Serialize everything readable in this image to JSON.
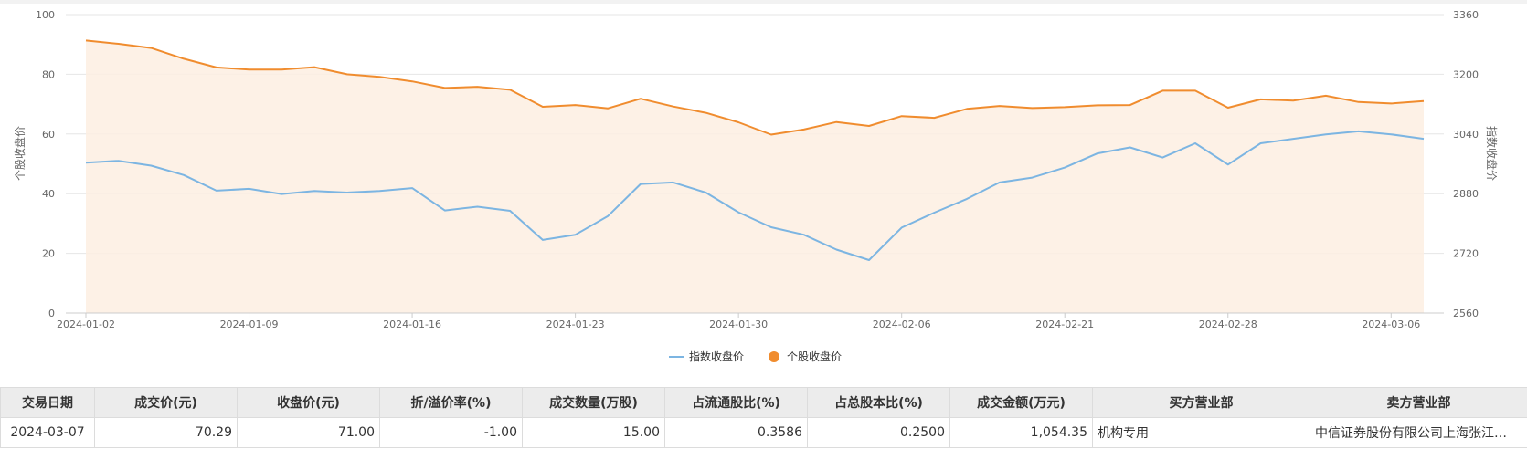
{
  "chart_data": {
    "type": "line",
    "left_axis": {
      "label": "个股收盘价",
      "ticks": [
        "0",
        "20",
        "40",
        "60",
        "80",
        "100"
      ],
      "range": [
        0,
        100
      ]
    },
    "right_axis": {
      "label": "指数收盘价",
      "ticks": [
        "2560",
        "2720",
        "2880",
        "3040",
        "3200",
        "3360"
      ],
      "range": [
        2560,
        3360
      ]
    },
    "x_tick_labels": [
      "2024-01-02",
      "2024-01-09",
      "2024-01-16",
      "2024-01-23",
      "2024-01-30",
      "2024-02-06",
      "2024-02-21",
      "2024-02-28",
      "2024-03-06"
    ],
    "x_tick_indices": [
      0,
      5,
      10,
      15,
      20,
      25,
      30,
      35,
      40
    ],
    "x": [
      "2024-01-02",
      "2024-01-03",
      "2024-01-04",
      "2024-01-05",
      "2024-01-08",
      "2024-01-09",
      "2024-01-10",
      "2024-01-11",
      "2024-01-12",
      "2024-01-15",
      "2024-01-16",
      "2024-01-17",
      "2024-01-18",
      "2024-01-19",
      "2024-01-22",
      "2024-01-23",
      "2024-01-24",
      "2024-01-25",
      "2024-01-26",
      "2024-01-29",
      "2024-01-30",
      "2024-01-31",
      "2024-02-01",
      "2024-02-02",
      "2024-02-05",
      "2024-02-06",
      "2024-02-07",
      "2024-02-08",
      "2024-02-19",
      "2024-02-20",
      "2024-02-21",
      "2024-02-22",
      "2024-02-23",
      "2024-02-26",
      "2024-02-27",
      "2024-02-28",
      "2024-02-29",
      "2024-03-01",
      "2024-03-04",
      "2024-03-05",
      "2024-03-06",
      "2024-03-07"
    ],
    "series": [
      {
        "name": "指数收盘价",
        "axis": "right",
        "color": "#7cb5e2",
        "values": [
          2963,
          2968,
          2955,
          2930,
          2888,
          2893,
          2879,
          2887,
          2883,
          2887,
          2895,
          2835,
          2845,
          2834,
          2756,
          2770,
          2820,
          2906,
          2910,
          2883,
          2830,
          2790,
          2770,
          2730,
          2702,
          2789,
          2829,
          2866,
          2910,
          2923,
          2950,
          2988,
          3004,
          2977,
          3015,
          2958,
          3015,
          3027,
          3039,
          3047,
          3039,
          3027
        ]
      },
      {
        "name": "个股收盘价",
        "axis": "left",
        "color": "#f08c2e",
        "area": true,
        "values": [
          91.3,
          90.2,
          88.8,
          85.2,
          82.3,
          81.6,
          81.6,
          82.4,
          80.0,
          79.1,
          77.6,
          75.4,
          75.8,
          74.8,
          69.1,
          69.7,
          68.6,
          71.8,
          69.2,
          67.1,
          63.9,
          59.8,
          61.5,
          64.0,
          62.7,
          66.0,
          65.4,
          68.4,
          69.4,
          68.7,
          69.0,
          69.6,
          69.7,
          74.5,
          74.5,
          68.8,
          71.6,
          71.2,
          72.8,
          70.7,
          70.2,
          71.0
        ]
      }
    ],
    "grid": true,
    "legend_position": "bottom-center"
  },
  "table": {
    "headers": [
      "交易日期",
      "成交价(元)",
      "收盘价(元)",
      "折/溢价率(%)",
      "成交数量(万股)",
      "占流通股比(%)",
      "占总股本比(%)",
      "成交金额(万元)",
      "买方营业部",
      "卖方营业部"
    ],
    "rows": [
      [
        "2024-03-07",
        "70.29",
        "71.00",
        "-1.00",
        "15.00",
        "0.3586",
        "0.2500",
        "1,054.35",
        "机构专用",
        "中信证券股份有限公司上海张江…"
      ]
    ]
  }
}
